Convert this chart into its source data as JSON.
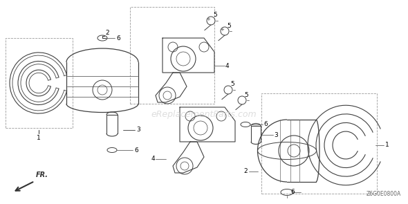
{
  "background_color": "#ffffff",
  "line_color": "#404040",
  "text_color": "#000000",
  "watermark_text": "eReplacementParts.com",
  "watermark_color": "#d0d0d0",
  "diagram_code": "Z6G0E0800A",
  "fig_width": 5.9,
  "fig_height": 2.95,
  "dpi": 100
}
